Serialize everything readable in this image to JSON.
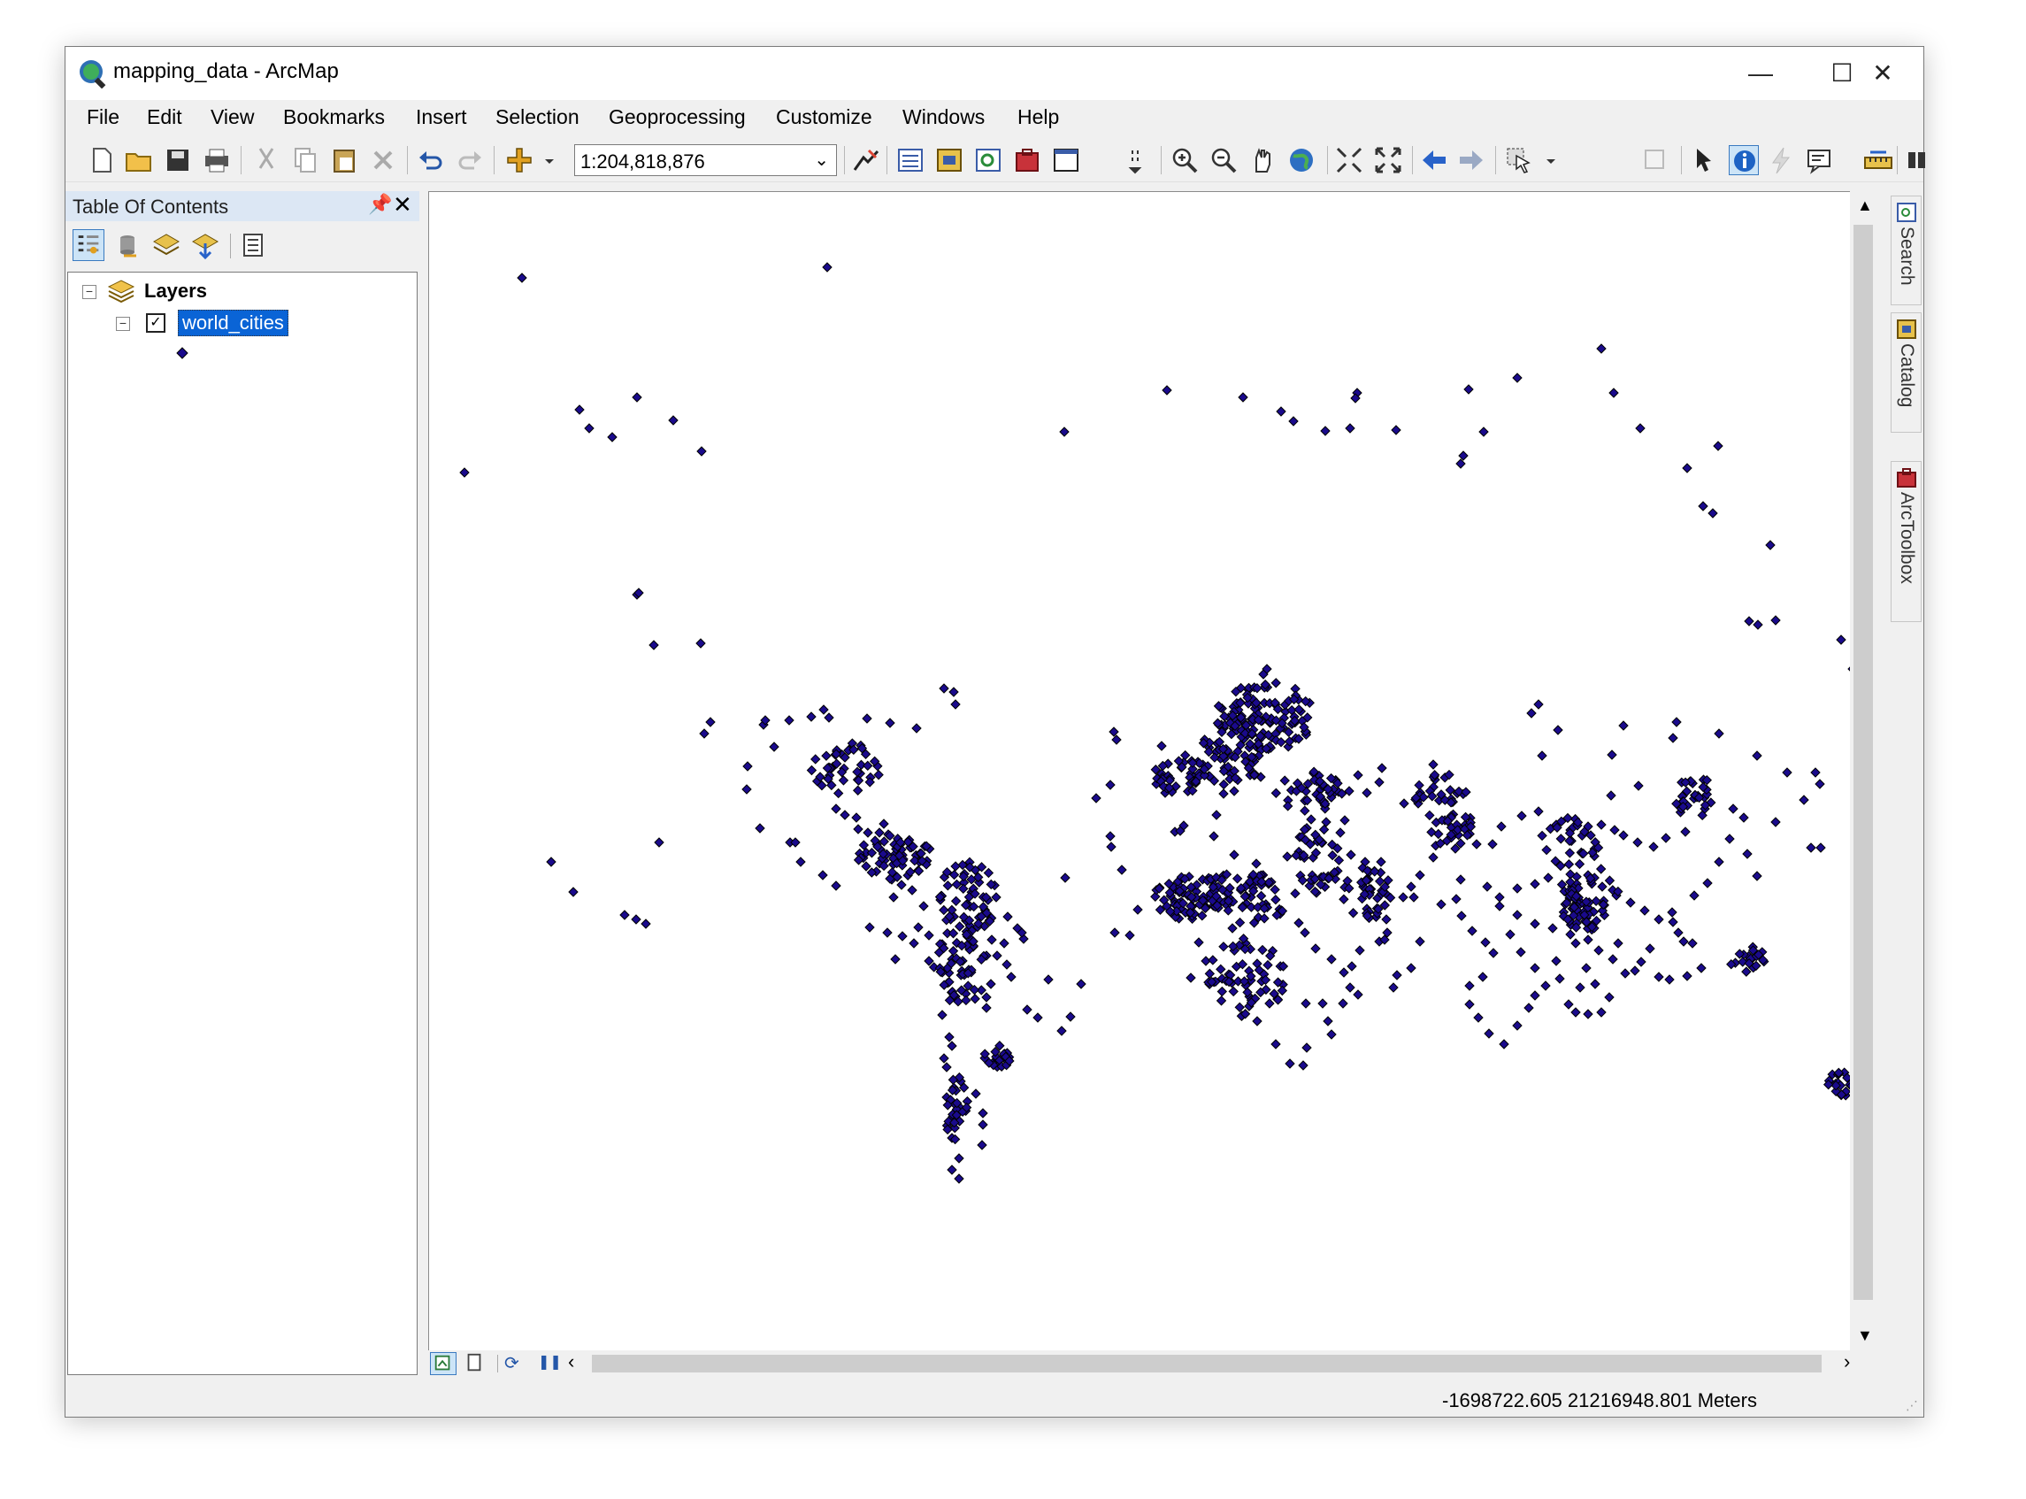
{
  "window": {
    "title": "mapping_data - ArcMap",
    "controls": {
      "minimize": "—",
      "maximize": "☐",
      "close": "✕"
    }
  },
  "menu": [
    "File",
    "Edit",
    "View",
    "Bookmarks",
    "Insert",
    "Selection",
    "Geoprocessing",
    "Customize",
    "Windows",
    "Help"
  ],
  "toolbar": {
    "scale": "1:204,818,876",
    "icons": [
      "new-document-icon",
      "open-folder-icon",
      "save-icon",
      "print-icon",
      "cut-icon",
      "copy-icon",
      "paste-icon",
      "delete-icon",
      "undo-icon",
      "redo-icon",
      "add-data-icon",
      "editor-toolbar-icon",
      "table-of-contents-icon",
      "catalog-window-icon",
      "search-window-icon",
      "arctoolbox-icon",
      "python-window-icon",
      "zoom-in-icon",
      "zoom-out-icon",
      "pan-icon",
      "full-extent-icon",
      "fixed-zoom-in-icon",
      "fixed-zoom-out-icon",
      "back-extent-icon",
      "forward-extent-icon",
      "select-features-icon",
      "clear-selection-icon",
      "select-elements-icon",
      "identify-icon",
      "hyperlink-icon",
      "html-popup-icon",
      "measure-icon",
      "find-icon"
    ]
  },
  "toc": {
    "title": "Table Of Contents",
    "pin": "ᵻ",
    "close": "✕",
    "root_layer": "Layers",
    "layers": [
      {
        "name": "world_cities",
        "visible": true,
        "selected": true
      }
    ],
    "expander_minus": "−"
  },
  "side_tabs": [
    "Search",
    "Catalog",
    "ArcToolbox"
  ],
  "map": {
    "point_color": "#1a0a8c",
    "point_outline": "#000000"
  },
  "status": {
    "coordinates": "-1698722.605  21216948.801 Meters"
  }
}
